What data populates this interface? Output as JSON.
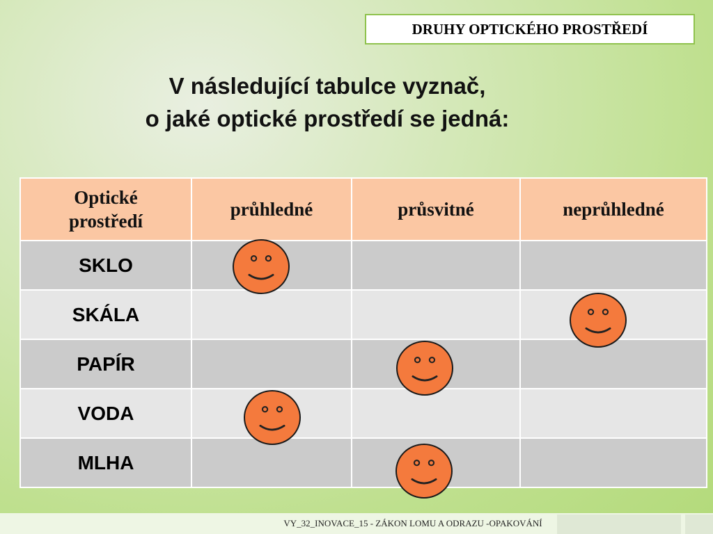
{
  "slide_title": "DRUHY OPTICKÉHO PROSTŘEDÍ",
  "heading": {
    "line1": "V následující tabulce vyznač,",
    "line2": "o jaké optické prostředí se jedná:"
  },
  "table": {
    "headers": [
      "Optické prostředí",
      "průhledné",
      "průsvitné",
      "neprůhledné"
    ],
    "rows": [
      {
        "label": "SKLO",
        "mark_column": "průhledné"
      },
      {
        "label": "SKÁLA",
        "mark_column": "neprůhledné"
      },
      {
        "label": "PAPÍR",
        "mark_column": "průsvitné"
      },
      {
        "label": "VODA",
        "mark_column": "průhledné"
      },
      {
        "label": "MLHA",
        "mark_column": "průsvitné"
      }
    ]
  },
  "marker_icon": "smiley-face-icon",
  "colors": {
    "header_bg": "#fbc7a3",
    "row_dark": "#cbcbcb",
    "row_light": "#e6e6e6",
    "smiley": "#f47a3d",
    "title_border": "#8fc24d"
  },
  "footer": "VY_32_INOVACE_15 - ZÁKON LOMU A ODRAZU -OPAKOVÁNÍ"
}
